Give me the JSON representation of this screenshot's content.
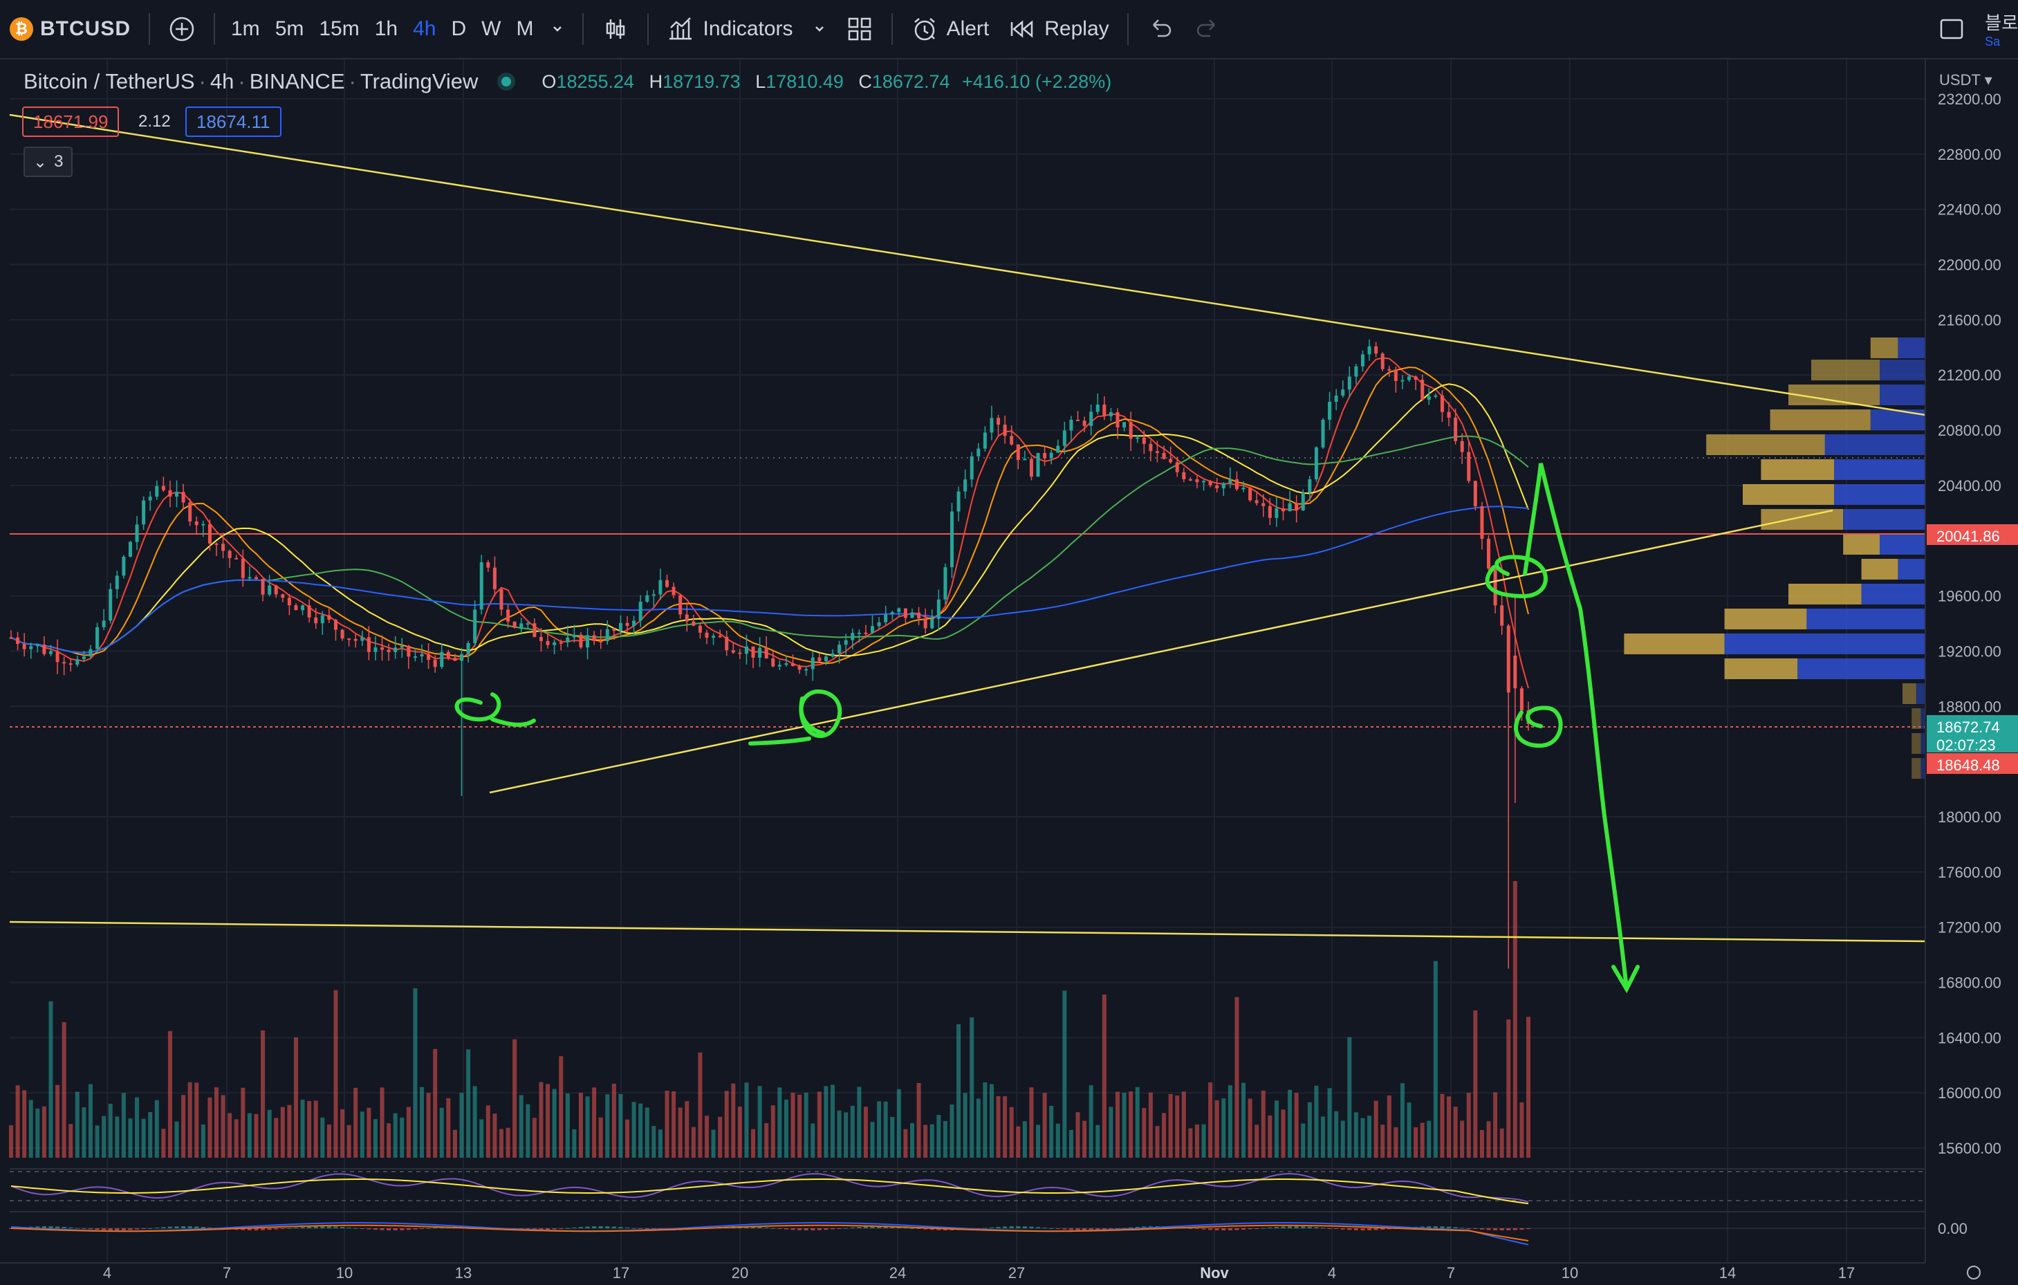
{
  "toolbar": {
    "symbol": "BTCUSD",
    "timeframes": [
      "1m",
      "5m",
      "15m",
      "1h",
      "4h",
      "D",
      "W",
      "M"
    ],
    "active_timeframe": "4h",
    "indicators_label": "Indicators",
    "alert_label": "Alert",
    "replay_label": "Replay",
    "korean_label": "블로",
    "korean_sub": "Sa"
  },
  "legend": {
    "title": "Bitcoin / TetherUS",
    "interval": "4h",
    "exchange": "BINANCE",
    "source": "TradingView",
    "open_label": "O",
    "open": "18255.24",
    "high_label": "H",
    "high": "18719.73",
    "low_label": "L",
    "low": "17810.49",
    "close_label": "C",
    "close": "18672.74",
    "change": "+416.10 (+2.28%)"
  },
  "bid": "18671.99",
  "spread": "2.12",
  "ask": "18674.11",
  "collapsed_count": "3",
  "price_axis": {
    "currency": "USDT",
    "ticks": [
      "23200.00",
      "22800.00",
      "22400.00",
      "22000.00",
      "21600.00",
      "21200.00",
      "20800.00",
      "20400.00",
      "19600.00",
      "19200.00",
      "18800.00",
      "18000.00",
      "17600.00",
      "17200.00",
      "16800.00",
      "16400.00",
      "16000.00",
      "15600.00"
    ],
    "ticks_values": [
      23200,
      22800,
      22400,
      22000,
      21600,
      21200,
      20800,
      20400,
      19600,
      19200,
      18800,
      18000,
      17600,
      17200,
      16800,
      16400,
      16000,
      15600
    ],
    "red_line_label": "20041.86",
    "current_price": "18672.74",
    "countdown": "02:07:23",
    "low_label": "18648.48",
    "macd_zero": "0.00"
  },
  "time_axis": [
    "4",
    "7",
    "10",
    "13",
    "17",
    "20",
    "24",
    "27",
    "Nov",
    "4",
    "7",
    "10",
    "14",
    "17"
  ],
  "colors": {
    "up": "#26a69a",
    "down": "#ef5350",
    "accent": "#2962ff",
    "trendline": "#f0e05a",
    "annotation": "#39e639",
    "ma_blue": "#2962ff",
    "ma_green": "#4caf50",
    "ma_orange": "#ff9800",
    "ma_yellow": "#ffeb3b",
    "ma_red": "#f44336"
  },
  "chart_data": {
    "type": "candlestick",
    "title": "Bitcoin / TetherUS",
    "interval": "4h",
    "ylim": [
      15400,
      23300
    ],
    "x": [
      "4",
      "7",
      "10",
      "13",
      "17",
      "20",
      "24",
      "27",
      "Nov",
      "4",
      "7",
      "10",
      "14",
      "17"
    ],
    "series": [
      {
        "name": "price",
        "waypoints": [
          [
            0,
            19300
          ],
          [
            0.04,
            19100
          ],
          [
            0.07,
            20200
          ],
          [
            0.08,
            20430
          ],
          [
            0.1,
            20150
          ],
          [
            0.13,
            19700
          ],
          [
            0.16,
            19500
          ],
          [
            0.19,
            19250
          ],
          [
            0.22,
            19150
          ],
          [
            0.245,
            19120
          ],
          [
            0.255,
            19850
          ],
          [
            0.27,
            19400
          ],
          [
            0.3,
            19250
          ],
          [
            0.33,
            19350
          ],
          [
            0.35,
            19700
          ],
          [
            0.37,
            19350
          ],
          [
            0.4,
            19200
          ],
          [
            0.42,
            19050
          ],
          [
            0.44,
            19200
          ],
          [
            0.46,
            19350
          ],
          [
            0.48,
            19480
          ],
          [
            0.5,
            19400
          ],
          [
            0.51,
            20300
          ],
          [
            0.53,
            20950
          ],
          [
            0.55,
            20500
          ],
          [
            0.57,
            20800
          ],
          [
            0.59,
            20950
          ],
          [
            0.61,
            20700
          ],
          [
            0.63,
            20500
          ],
          [
            0.66,
            20400
          ],
          [
            0.68,
            20180
          ],
          [
            0.7,
            20300
          ],
          [
            0.71,
            20900
          ],
          [
            0.73,
            21400
          ],
          [
            0.75,
            21200
          ],
          [
            0.77,
            21000
          ],
          [
            0.78,
            20800
          ],
          [
            0.79,
            20300
          ],
          [
            0.8,
            19700
          ],
          [
            0.815,
            18800
          ],
          [
            0.82,
            18670
          ]
        ]
      }
    ]
  }
}
